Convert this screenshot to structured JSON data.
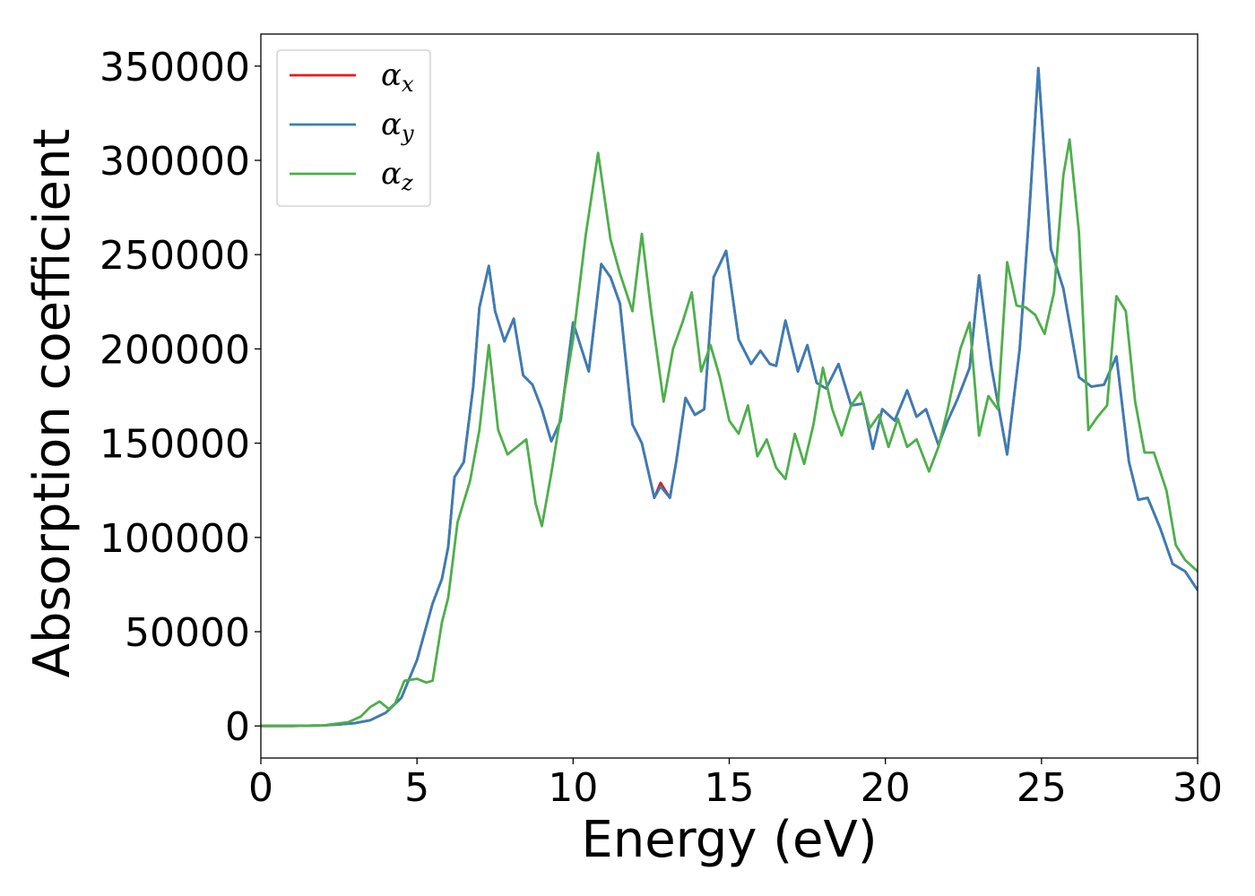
{
  "chart_data": {
    "type": "line",
    "title": "",
    "xlabel": "Energy (eV)",
    "ylabel": "Absorption coefficient",
    "xlim": [
      0,
      30
    ],
    "ylim": [
      -17000,
      367000
    ],
    "xticks": [
      0,
      5,
      10,
      15,
      20,
      25,
      30
    ],
    "yticks": [
      0,
      50000,
      100000,
      150000,
      200000,
      250000,
      300000,
      350000
    ],
    "grid": false,
    "legend": {
      "placement": "top-left"
    },
    "series": [
      {
        "name": "αx",
        "base": "α",
        "sub": "x",
        "color": "#e41a1c",
        "points": [
          [
            0,
            0
          ],
          [
            1,
            0
          ],
          [
            2,
            300
          ],
          [
            2.5,
            800
          ],
          [
            3,
            1500
          ],
          [
            3.5,
            3000
          ],
          [
            4,
            7000
          ],
          [
            4.5,
            15000
          ],
          [
            5,
            35000
          ],
          [
            5.5,
            65000
          ],
          [
            5.8,
            78000
          ],
          [
            6,
            95000
          ],
          [
            6.2,
            132000
          ],
          [
            6.5,
            140000
          ],
          [
            6.8,
            180000
          ],
          [
            7,
            222000
          ],
          [
            7.3,
            244000
          ],
          [
            7.5,
            220000
          ],
          [
            7.8,
            204000
          ],
          [
            8.1,
            216000
          ],
          [
            8.4,
            186000
          ],
          [
            8.7,
            181000
          ],
          [
            9,
            168000
          ],
          [
            9.3,
            151000
          ],
          [
            9.6,
            162000
          ],
          [
            10,
            214000
          ],
          [
            10.5,
            188000
          ],
          [
            10.9,
            245000
          ],
          [
            11.2,
            238000
          ],
          [
            11.5,
            224000
          ],
          [
            11.9,
            160000
          ],
          [
            12.2,
            150000
          ],
          [
            12.6,
            121000
          ],
          [
            12.8,
            129000
          ],
          [
            13.1,
            121000
          ],
          [
            13.3,
            140000
          ],
          [
            13.6,
            174000
          ],
          [
            13.9,
            165000
          ],
          [
            14.2,
            168000
          ],
          [
            14.5,
            238000
          ],
          [
            14.9,
            252000
          ],
          [
            15.3,
            205000
          ],
          [
            15.7,
            192000
          ],
          [
            16,
            199000
          ],
          [
            16.3,
            192000
          ],
          [
            16.5,
            191000
          ],
          [
            16.8,
            215000
          ],
          [
            17.2,
            188000
          ],
          [
            17.5,
            202000
          ],
          [
            17.8,
            182000
          ],
          [
            18.1,
            179000
          ],
          [
            18.5,
            192000
          ],
          [
            18.9,
            170000
          ],
          [
            19.3,
            171000
          ],
          [
            19.6,
            147000
          ],
          [
            19.9,
            168000
          ],
          [
            20.3,
            162000
          ],
          [
            20.7,
            178000
          ],
          [
            21,
            164000
          ],
          [
            21.3,
            168000
          ],
          [
            21.7,
            149000
          ],
          [
            22,
            162000
          ],
          [
            22.3,
            173000
          ],
          [
            22.7,
            190000
          ],
          [
            23,
            239000
          ],
          [
            23.4,
            190000
          ],
          [
            23.9,
            144000
          ],
          [
            24.3,
            200000
          ],
          [
            24.6,
            270000
          ],
          [
            24.9,
            349000
          ],
          [
            25.3,
            253000
          ],
          [
            25.7,
            232000
          ],
          [
            26.2,
            185000
          ],
          [
            26.6,
            180000
          ],
          [
            27,
            181000
          ],
          [
            27.4,
            196000
          ],
          [
            27.8,
            140000
          ],
          [
            28.1,
            120000
          ],
          [
            28.4,
            121000
          ],
          [
            28.8,
            105000
          ],
          [
            29.2,
            86000
          ],
          [
            29.6,
            82000
          ],
          [
            30,
            72000
          ]
        ]
      },
      {
        "name": "αy",
        "base": "α",
        "sub": "y",
        "color": "#377eb8",
        "points": [
          [
            0,
            0
          ],
          [
            1,
            0
          ],
          [
            2,
            300
          ],
          [
            2.5,
            800
          ],
          [
            3,
            1500
          ],
          [
            3.5,
            3000
          ],
          [
            4,
            7000
          ],
          [
            4.5,
            15000
          ],
          [
            5,
            35000
          ],
          [
            5.5,
            65000
          ],
          [
            5.8,
            78000
          ],
          [
            6,
            95000
          ],
          [
            6.2,
            132000
          ],
          [
            6.5,
            140000
          ],
          [
            6.8,
            180000
          ],
          [
            7,
            222000
          ],
          [
            7.3,
            244000
          ],
          [
            7.5,
            220000
          ],
          [
            7.8,
            204000
          ],
          [
            8.1,
            216000
          ],
          [
            8.4,
            186000
          ],
          [
            8.7,
            181000
          ],
          [
            9,
            168000
          ],
          [
            9.3,
            151000
          ],
          [
            9.6,
            162000
          ],
          [
            10,
            214000
          ],
          [
            10.5,
            188000
          ],
          [
            10.9,
            245000
          ],
          [
            11.2,
            238000
          ],
          [
            11.5,
            224000
          ],
          [
            11.9,
            160000
          ],
          [
            12.2,
            150000
          ],
          [
            12.6,
            121000
          ],
          [
            12.8,
            127000
          ],
          [
            13.1,
            121000
          ],
          [
            13.3,
            140000
          ],
          [
            13.6,
            174000
          ],
          [
            13.9,
            165000
          ],
          [
            14.2,
            168000
          ],
          [
            14.5,
            238000
          ],
          [
            14.9,
            252000
          ],
          [
            15.3,
            205000
          ],
          [
            15.7,
            192000
          ],
          [
            16,
            199000
          ],
          [
            16.3,
            192000
          ],
          [
            16.5,
            191000
          ],
          [
            16.8,
            215000
          ],
          [
            17.2,
            188000
          ],
          [
            17.5,
            202000
          ],
          [
            17.8,
            182000
          ],
          [
            18.1,
            179000
          ],
          [
            18.5,
            192000
          ],
          [
            18.9,
            170000
          ],
          [
            19.3,
            171000
          ],
          [
            19.6,
            147000
          ],
          [
            19.9,
            168000
          ],
          [
            20.3,
            162000
          ],
          [
            20.7,
            178000
          ],
          [
            21,
            164000
          ],
          [
            21.3,
            168000
          ],
          [
            21.7,
            149000
          ],
          [
            22,
            162000
          ],
          [
            22.3,
            173000
          ],
          [
            22.7,
            190000
          ],
          [
            23,
            239000
          ],
          [
            23.4,
            190000
          ],
          [
            23.9,
            144000
          ],
          [
            24.3,
            200000
          ],
          [
            24.6,
            270000
          ],
          [
            24.9,
            349000
          ],
          [
            25.3,
            253000
          ],
          [
            25.7,
            232000
          ],
          [
            26.2,
            185000
          ],
          [
            26.6,
            180000
          ],
          [
            27,
            181000
          ],
          [
            27.4,
            196000
          ],
          [
            27.8,
            140000
          ],
          [
            28.1,
            120000
          ],
          [
            28.4,
            121000
          ],
          [
            28.8,
            105000
          ],
          [
            29.2,
            86000
          ],
          [
            29.6,
            82000
          ],
          [
            30,
            72000
          ]
        ]
      },
      {
        "name": "αz",
        "base": "α",
        "sub": "z",
        "color": "#4daf4a",
        "points": [
          [
            0,
            0
          ],
          [
            1,
            0
          ],
          [
            2,
            300
          ],
          [
            2.8,
            2000
          ],
          [
            3.2,
            5000
          ],
          [
            3.5,
            10000
          ],
          [
            3.8,
            13000
          ],
          [
            4.1,
            9000
          ],
          [
            4.3,
            12000
          ],
          [
            4.6,
            24000
          ],
          [
            5,
            25000
          ],
          [
            5.3,
            23000
          ],
          [
            5.5,
            24000
          ],
          [
            5.8,
            55000
          ],
          [
            6,
            68000
          ],
          [
            6.3,
            108000
          ],
          [
            6.7,
            130000
          ],
          [
            7,
            157000
          ],
          [
            7.3,
            202000
          ],
          [
            7.6,
            157000
          ],
          [
            7.9,
            144000
          ],
          [
            8.2,
            148000
          ],
          [
            8.5,
            152000
          ],
          [
            8.8,
            118000
          ],
          [
            9,
            106000
          ],
          [
            9.3,
            134000
          ],
          [
            9.7,
            175000
          ],
          [
            10,
            205000
          ],
          [
            10.4,
            260000
          ],
          [
            10.8,
            304000
          ],
          [
            11.2,
            258000
          ],
          [
            11.5,
            240000
          ],
          [
            11.9,
            220000
          ],
          [
            12.2,
            261000
          ],
          [
            12.5,
            220000
          ],
          [
            12.9,
            172000
          ],
          [
            13.2,
            200000
          ],
          [
            13.5,
            214000
          ],
          [
            13.8,
            230000
          ],
          [
            14.1,
            188000
          ],
          [
            14.4,
            202000
          ],
          [
            14.7,
            185000
          ],
          [
            15,
            162000
          ],
          [
            15.3,
            155000
          ],
          [
            15.6,
            170000
          ],
          [
            15.9,
            143000
          ],
          [
            16.2,
            152000
          ],
          [
            16.5,
            137000
          ],
          [
            16.8,
            131000
          ],
          [
            17.1,
            155000
          ],
          [
            17.4,
            139000
          ],
          [
            17.7,
            160000
          ],
          [
            18,
            190000
          ],
          [
            18.3,
            168000
          ],
          [
            18.6,
            154000
          ],
          [
            18.9,
            170000
          ],
          [
            19.2,
            177000
          ],
          [
            19.5,
            158000
          ],
          [
            19.8,
            165000
          ],
          [
            20.1,
            148000
          ],
          [
            20.4,
            163000
          ],
          [
            20.7,
            148000
          ],
          [
            21,
            152000
          ],
          [
            21.4,
            135000
          ],
          [
            21.7,
            148000
          ],
          [
            22,
            168000
          ],
          [
            22.4,
            200000
          ],
          [
            22.7,
            214000
          ],
          [
            23,
            154000
          ],
          [
            23.3,
            175000
          ],
          [
            23.6,
            168000
          ],
          [
            23.9,
            246000
          ],
          [
            24.2,
            223000
          ],
          [
            24.5,
            222000
          ],
          [
            24.8,
            218000
          ],
          [
            25.1,
            208000
          ],
          [
            25.4,
            230000
          ],
          [
            25.7,
            292000
          ],
          [
            25.9,
            311000
          ],
          [
            26.2,
            262000
          ],
          [
            26.5,
            157000
          ],
          [
            26.8,
            164000
          ],
          [
            27.1,
            170000
          ],
          [
            27.4,
            228000
          ],
          [
            27.7,
            220000
          ],
          [
            28,
            172000
          ],
          [
            28.3,
            145000
          ],
          [
            28.6,
            145000
          ],
          [
            29,
            125000
          ],
          [
            29.3,
            96000
          ],
          [
            29.6,
            88000
          ],
          [
            30,
            82000
          ]
        ]
      }
    ]
  }
}
